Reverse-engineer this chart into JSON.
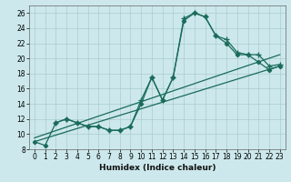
{
  "xlabel": "Humidex (Indice chaleur)",
  "bg_color": "#cce8ec",
  "grid_color": "#aacccc",
  "line_color": "#1a6b5a",
  "xlim": [
    -0.5,
    23.5
  ],
  "ylim": [
    8,
    27
  ],
  "xticks": [
    0,
    1,
    2,
    3,
    4,
    5,
    6,
    7,
    8,
    9,
    10,
    11,
    12,
    13,
    14,
    15,
    16,
    17,
    18,
    19,
    20,
    21,
    22,
    23
  ],
  "yticks": [
    8,
    10,
    12,
    14,
    16,
    18,
    20,
    22,
    24,
    26
  ],
  "curve1_x": [
    0,
    1,
    2,
    3,
    4,
    5,
    6,
    7,
    8,
    9,
    10,
    11,
    12,
    13,
    14,
    15,
    16,
    17,
    18,
    19,
    20,
    21,
    22,
    23
  ],
  "curve1_y": [
    9.0,
    8.5,
    11.5,
    12.0,
    11.5,
    11.0,
    11.0,
    10.5,
    10.5,
    11.0,
    14.0,
    17.5,
    14.5,
    17.5,
    25.0,
    26.0,
    25.5,
    23.0,
    22.0,
    20.5,
    20.5,
    19.5,
    18.5,
    19.0
  ],
  "curve2_x": [
    2,
    3,
    4,
    5,
    6,
    7,
    8,
    9,
    10,
    11,
    12,
    13,
    14,
    15,
    16,
    17,
    18,
    19,
    20,
    21,
    22,
    23
  ],
  "curve2_y": [
    11.5,
    12.0,
    11.5,
    11.0,
    11.0,
    10.5,
    10.5,
    11.0,
    14.5,
    17.5,
    14.5,
    17.5,
    25.3,
    26.0,
    25.5,
    23.0,
    22.5,
    20.8,
    20.5,
    20.5,
    19.0,
    19.2
  ],
  "line1_x": [
    0,
    23
  ],
  "line1_y": [
    9.5,
    20.5
  ],
  "line2_x": [
    0,
    23
  ],
  "line2_y": [
    9.0,
    19.0
  ],
  "xlabel_fontsize": 6.5,
  "tick_labelsize": 5.5
}
